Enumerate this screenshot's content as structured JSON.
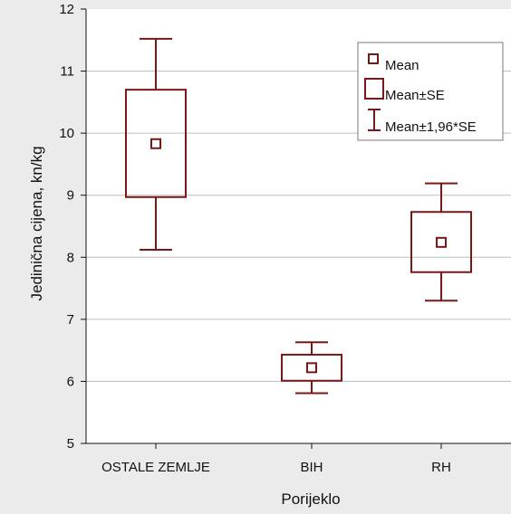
{
  "chart_data": {
    "type": "box",
    "xlabel": "Porijeklo",
    "ylabel": "Jedinična cijena, kn/kg",
    "ylim": [
      5,
      12
    ],
    "yticks": [
      "5",
      "6",
      "7",
      "8",
      "9",
      "10",
      "11",
      "12"
    ],
    "categories": [
      "OSTALE ZEMLJE",
      "BIH",
      "RH"
    ],
    "mean": [
      9.83,
      6.22,
      8.24
    ],
    "se_lower": [
      8.97,
      6.01,
      7.76
    ],
    "se_upper": [
      10.7,
      6.43,
      8.73
    ],
    "ci_lower": [
      8.12,
      5.81,
      7.3
    ],
    "ci_upper": [
      11.52,
      6.63,
      9.19
    ],
    "grid": true,
    "legend": {
      "position": "top-right",
      "entries": [
        "Mean",
        "Mean±SE",
        "Mean±1,96*SE"
      ]
    },
    "colors": {
      "series": "#7a1717",
      "grid": "#bdbdbd",
      "plot_background": "#ffffff",
      "page_background": "#ebebeb"
    }
  }
}
